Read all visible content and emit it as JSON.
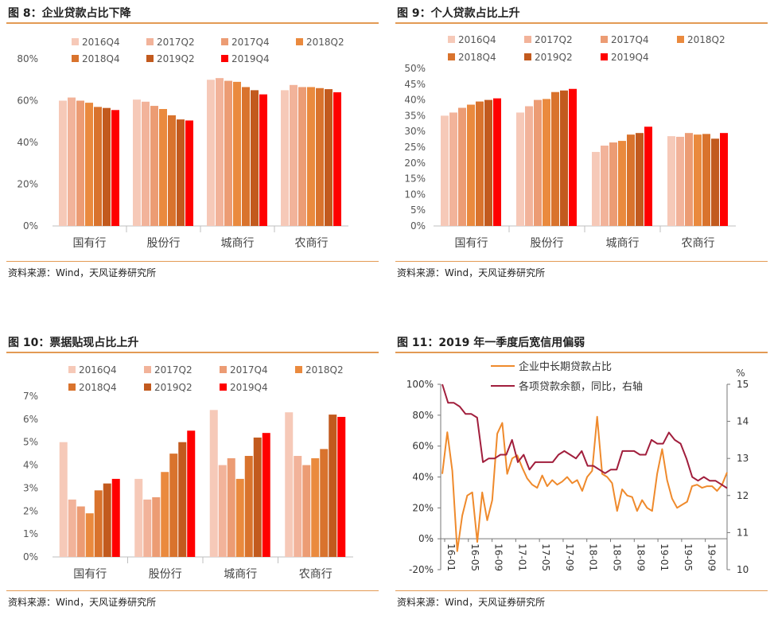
{
  "source_text": "资料来源：Wind，天风证券研究所",
  "colors": [
    "#f6c9b8",
    "#f2b39a",
    "#ec9c74",
    "#ea8a3e",
    "#d9732d",
    "#c25a1e",
    "#ff0000"
  ],
  "line_colors": {
    "share": "#ef8a2c",
    "growth": "#a11e3c"
  },
  "chart_data": [
    {
      "id": "fig8",
      "type": "bar",
      "title": "图 8：企业贷款占比下降",
      "categories": [
        "国有行",
        "股份行",
        "城商行",
        "农商行"
      ],
      "series": [
        {
          "name": "2016Q4",
          "values": [
            60.0,
            60.5,
            70.0,
            65.0
          ]
        },
        {
          "name": "2017Q2",
          "values": [
            61.5,
            59.5,
            70.8,
            67.5
          ]
        },
        {
          "name": "2017Q4",
          "values": [
            60.0,
            57.5,
            69.5,
            66.5
          ]
        },
        {
          "name": "2018Q2",
          "values": [
            59.0,
            56.0,
            69.0,
            66.5
          ]
        },
        {
          "name": "2018Q4",
          "values": [
            57.0,
            53.0,
            66.5,
            66.0
          ]
        },
        {
          "name": "2019Q2",
          "values": [
            56.5,
            51.0,
            65.0,
            65.5
          ]
        },
        {
          "name": "2019Q4",
          "values": [
            55.5,
            50.5,
            63.0,
            64.0
          ]
        }
      ],
      "y_ticks": [
        "0%",
        "20%",
        "40%",
        "60%",
        "80%"
      ],
      "ylim": [
        0,
        80
      ]
    },
    {
      "id": "fig9",
      "type": "bar",
      "title": "图 9：个人贷款占比上升",
      "categories": [
        "国有行",
        "股份行",
        "城商行",
        "农商行"
      ],
      "series": [
        {
          "name": "2016Q4",
          "values": [
            35.0,
            36.0,
            23.5,
            28.5
          ]
        },
        {
          "name": "2017Q2",
          "values": [
            36.0,
            38.0,
            25.5,
            28.3
          ]
        },
        {
          "name": "2017Q4",
          "values": [
            37.5,
            40.0,
            26.5,
            29.5
          ]
        },
        {
          "name": "2018Q2",
          "values": [
            38.5,
            40.3,
            27.0,
            29.0
          ]
        },
        {
          "name": "2018Q4",
          "values": [
            39.5,
            42.5,
            29.0,
            29.2
          ]
        },
        {
          "name": "2019Q2",
          "values": [
            40.0,
            43.0,
            29.5,
            27.7
          ]
        },
        {
          "name": "2019Q4",
          "values": [
            40.5,
            43.5,
            31.5,
            29.5
          ]
        }
      ],
      "y_ticks": [
        "0%",
        "5%",
        "10%",
        "15%",
        "20%",
        "25%",
        "30%",
        "35%",
        "40%",
        "45%",
        "50%"
      ],
      "ylim": [
        0,
        50
      ]
    },
    {
      "id": "fig10",
      "type": "bar",
      "title": "图 10：票据贴现占比上升",
      "categories": [
        "国有行",
        "股份行",
        "城商行",
        "农商行"
      ],
      "series": [
        {
          "name": "2016Q4",
          "values": [
            5.0,
            3.4,
            6.4,
            6.3
          ]
        },
        {
          "name": "2017Q2",
          "values": [
            2.5,
            2.5,
            4.0,
            4.4
          ]
        },
        {
          "name": "2017Q4",
          "values": [
            2.2,
            2.6,
            4.3,
            4.0
          ]
        },
        {
          "name": "2018Q2",
          "values": [
            1.9,
            3.7,
            3.4,
            4.3
          ]
        },
        {
          "name": "2018Q4",
          "values": [
            2.9,
            4.5,
            4.4,
            4.7
          ]
        },
        {
          "name": "2019Q2",
          "values": [
            3.2,
            5.0,
            5.2,
            6.2
          ]
        },
        {
          "name": "2019Q4",
          "values": [
            3.4,
            5.5,
            5.4,
            6.1
          ]
        }
      ],
      "y_ticks": [
        "0%",
        "1%",
        "2%",
        "3%",
        "4%",
        "5%",
        "6%",
        "7%"
      ],
      "ylim": [
        0,
        7
      ]
    },
    {
      "id": "fig11",
      "type": "line",
      "title": "图 11：2019 年一季度后宽信用偏弱",
      "y_left_ticks": [
        "-20%",
        "0%",
        "20%",
        "40%",
        "60%",
        "80%",
        "100%"
      ],
      "y_left_lim": [
        -20,
        100
      ],
      "y_right_ticks": [
        "10",
        "11",
        "12",
        "13",
        "14",
        "15"
      ],
      "y_right_lim": [
        10,
        15
      ],
      "y_right_unit": "%",
      "x_ticks": [
        "16-01",
        "16-05",
        "16-09",
        "17-01",
        "17-05",
        "17-09",
        "18-01",
        "18-05",
        "18-09",
        "19-01",
        "19-05",
        "19-09"
      ],
      "series": [
        {
          "name": "企业中长期贷款占比",
          "axis": "left",
          "values": [
            42,
            69,
            44,
            -8,
            15,
            28,
            30,
            -2,
            30,
            12,
            25,
            68,
            75,
            42,
            52,
            54,
            46,
            39,
            35,
            33,
            41,
            34,
            38,
            35,
            37,
            40,
            36,
            38,
            31,
            40,
            44,
            79,
            42,
            40,
            36,
            18,
            32,
            28,
            27,
            18,
            25,
            20,
            18,
            42,
            58,
            38,
            26,
            20,
            22,
            24,
            34,
            35,
            33,
            34,
            34,
            31,
            35,
            43
          ]
        },
        {
          "name": "各项贷款余额，同比，右轴",
          "axis": "right",
          "values": [
            15.0,
            14.5,
            14.5,
            14.4,
            14.2,
            14.2,
            14.1,
            12.9,
            13.0,
            13.0,
            13.1,
            13.1,
            13.5,
            12.9,
            13.1,
            12.7,
            12.9,
            12.9,
            12.9,
            12.9,
            13.1,
            13.2,
            13.1,
            13.0,
            13.2,
            12.8,
            12.8,
            12.7,
            12.6,
            12.7,
            12.7,
            13.2,
            13.2,
            13.2,
            13.1,
            13.1,
            13.5,
            13.4,
            13.4,
            13.7,
            13.5,
            13.4,
            13.0,
            12.5,
            12.4,
            12.5,
            12.4,
            12.4,
            12.3,
            12.2
          ]
        }
      ]
    }
  ]
}
